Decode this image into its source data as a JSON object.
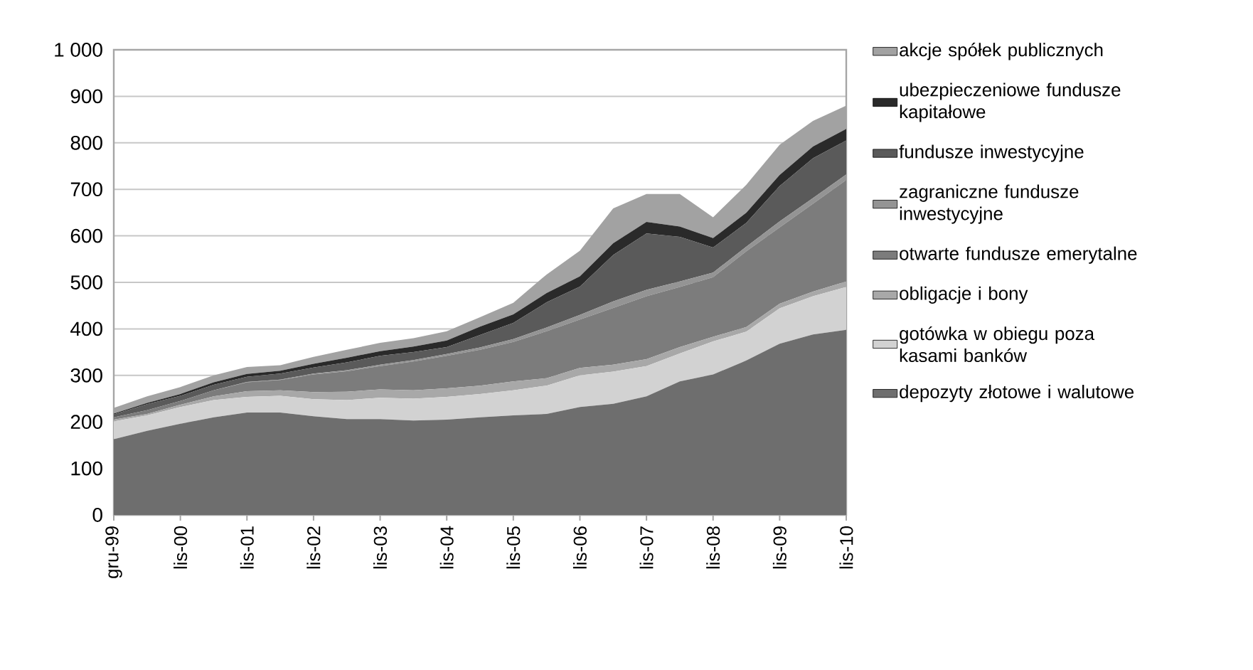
{
  "chart_data": {
    "type": "area",
    "stacked": true,
    "grid": "y",
    "legend": "right",
    "categories": [
      "gru-99",
      null,
      "lis-00",
      null,
      "lis-01",
      null,
      "lis-02",
      null,
      "lis-03",
      null,
      "lis-04",
      null,
      "lis-05",
      null,
      "lis-06",
      null,
      "lis-07",
      null,
      "lis-08",
      null,
      "lis-09",
      null,
      "lis-10"
    ],
    "ylim": [
      0,
      1000
    ],
    "yticks": [
      0,
      100,
      200,
      300,
      400,
      500,
      600,
      700,
      800,
      900,
      {
        "value": 1000,
        "label": "1 000"
      }
    ],
    "series": [
      {
        "name": "depozyty złotowe i walutowe",
        "color": "#6e6e6e",
        "values": [
          163,
          181,
          196,
          210,
          220,
          220,
          212,
          206,
          206,
          203,
          205,
          210,
          214,
          217,
          232,
          239,
          255,
          287,
          302,
          332,
          368,
          388,
          398
        ]
      },
      {
        "name": "gotówka w obiegu poza kasami banków",
        "color": "#d2d2d2",
        "values": [
          38,
          33,
          36,
          37,
          34,
          36,
          37,
          41,
          46,
          47,
          49,
          50,
          54,
          61,
          68,
          69,
          65,
          60,
          71,
          62,
          76,
          82,
          92
        ]
      },
      {
        "name": "obligacje i bony",
        "color": "#a8a8a8",
        "values": [
          4,
          3,
          5,
          8,
          12,
          12,
          15,
          18,
          18,
          18,
          18,
          18,
          19,
          16,
          16,
          15,
          15,
          14,
          10,
          10,
          10,
          10,
          12
        ]
      },
      {
        "name": "otwarte fundusze emerytalne",
        "color": "#7c7c7c",
        "values": [
          5,
          8,
          8,
          13,
          19,
          22,
          38,
          44,
          50,
          62,
          70,
          77,
          85,
          101,
          104,
          122,
          135,
          129,
          128,
          163,
          164,
          189,
          218
        ]
      },
      {
        "name": "zagraniczne fundusze inwestycyjne",
        "color": "#949494",
        "values": [
          0,
          0,
          0,
          0,
          1,
          1,
          2,
          2,
          3,
          3,
          4,
          5,
          6,
          8,
          10,
          14,
          14,
          12,
          10,
          10,
          13,
          12,
          12
        ]
      },
      {
        "name": "fundusze inwestycyjne",
        "color": "#5a5a5a",
        "values": [
          6,
          13,
          11,
          12,
          11,
          13,
          13,
          17,
          19,
          17,
          15,
          27,
          35,
          54,
          61,
          100,
          121,
          96,
          54,
          51,
          76,
          86,
          73
        ]
      },
      {
        "name": "ubezpieczeniowe fundusze kapitałowe",
        "color": "#2a2a2a",
        "values": [
          2,
          3,
          4,
          5,
          6,
          6,
          8,
          10,
          10,
          12,
          14,
          18,
          18,
          20,
          22,
          25,
          25,
          22,
          20,
          22,
          24,
          25,
          25
        ]
      },
      {
        "name": "akcje spółek publicznych",
        "color": "#a2a2a2",
        "values": [
          12,
          14,
          15,
          15,
          15,
          12,
          15,
          17,
          18,
          18,
          20,
          20,
          25,
          40,
          55,
          75,
          60,
          70,
          45,
          60,
          65,
          55,
          50
        ]
      }
    ]
  }
}
